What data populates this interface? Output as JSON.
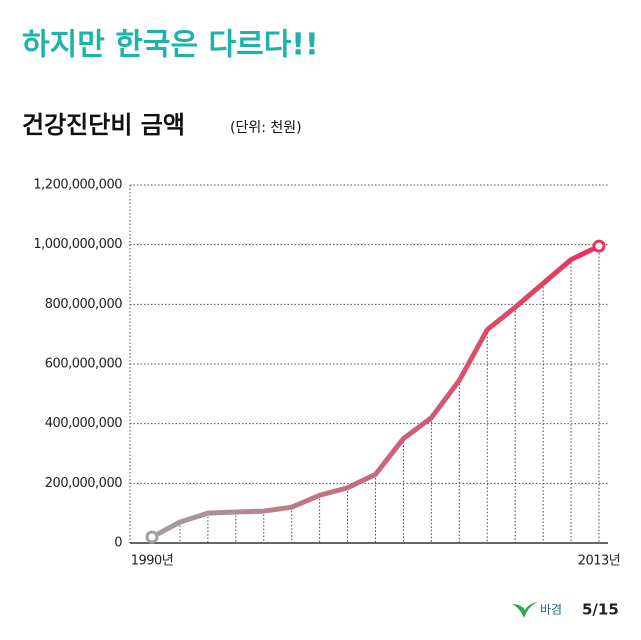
{
  "header": {
    "title": "하지만 한국은 다르다!!"
  },
  "chart_data": {
    "type": "line",
    "title": "건강진단비 금액",
    "subtitle": "(단위: 천원)",
    "categories": [
      "1990년",
      null,
      null,
      null,
      null,
      null,
      null,
      null,
      null,
      null,
      null,
      null,
      null,
      null,
      null,
      null,
      "2013년"
    ],
    "values": [
      20000000,
      70000000,
      100000000,
      104000000,
      107000000,
      120000000,
      160000000,
      185000000,
      230000000,
      350000000,
      420000000,
      545000000,
      715000000,
      790000000,
      870000000,
      950000000,
      995000000
    ],
    "colors": [
      "#a39e9e",
      "#e8345b"
    ],
    "ylim": [
      0,
      1200000000
    ],
    "yticks": [
      0,
      {
        "value": 200000000,
        "label": "200,000,000"
      },
      {
        "value": 400000000,
        "label": "400,000,000"
      },
      {
        "value": 600000000,
        "label": "600,000,000"
      },
      {
        "value": 800000000,
        "label": "800,000,000"
      },
      {
        "value": 1000000000,
        "label": "1,000,000,000"
      },
      {
        "value": 1200000000,
        "label": "1,200,000,000"
      }
    ],
    "grid": true
  },
  "footer": {
    "logo": "바겸",
    "page": "5/15"
  }
}
